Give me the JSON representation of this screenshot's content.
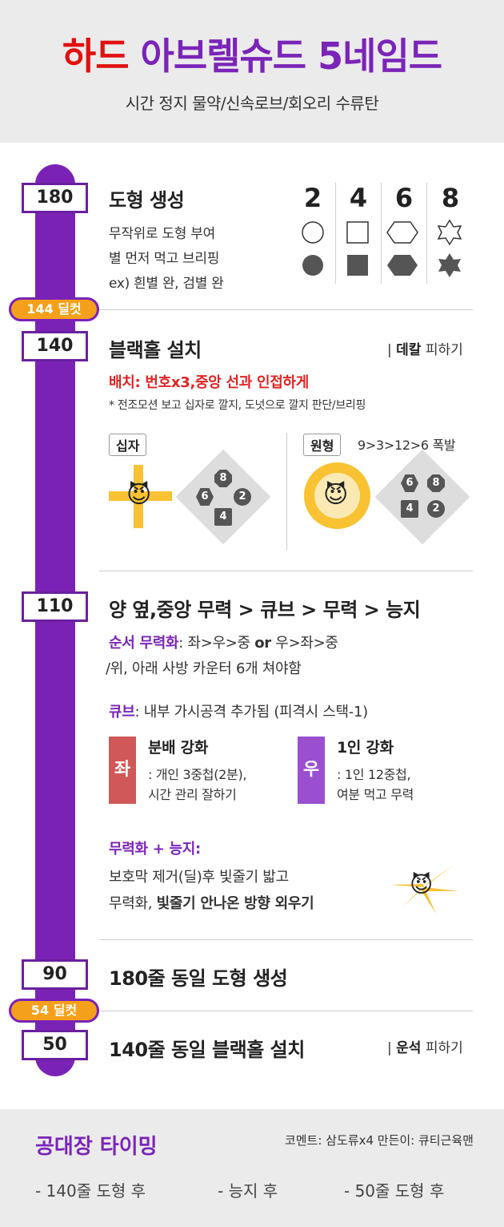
{
  "header": {
    "title_part1": "하드",
    "title_part2": "아브렐슈드 5네임드",
    "subtitle": "시간 정지 물약/신속로브/회오리 수류탄"
  },
  "timeline": {
    "hp_markers": [
      "180",
      "140",
      "110",
      "90",
      "50"
    ],
    "deal_pills": [
      "144 딜컷",
      "54 딜컷"
    ]
  },
  "sec180": {
    "title": "도형 생성",
    "lines": [
      "무작위로 도형 부여",
      "별 먼저 먹고 브리핑",
      "ex) 흰별 완, 검별 완"
    ],
    "shape_numbers": [
      "2",
      "4",
      "6",
      "8"
    ]
  },
  "sec140": {
    "title": "블랙홀 설치",
    "note_bold": "데칼",
    "note_rest": "피하기",
    "red_line": "배치: 번호x3,중앙 선과 인접하게",
    "small_line": "* 전조모션 보고 십자로 깔지, 도넛으로 깔지 판단/브리핑",
    "cross_tag": "십자",
    "circle_tag": "원형",
    "circle_order": "9>3>12>6  폭발",
    "cross_badges": [
      "8",
      "6",
      "2",
      "4"
    ],
    "circle_badges": [
      "6",
      "8",
      "4",
      "2"
    ],
    "devil": "😈"
  },
  "sec110": {
    "title": "양 옆,중앙 무력 > 큐브 > 무력 > 능지",
    "order_label": "순서 무력화",
    "order_text": ": 좌>우>중 ",
    "order_or": "or",
    "order_text2": " 우>좌>중",
    "order_line2": "/위, 아래 사방 카운터 6개 쳐야함",
    "cube_label": "큐브",
    "cube_text": ": 내부 가시공격 추가됨 (피격시 스택-1)",
    "left_box": "좌",
    "left_title": "분배 강화",
    "left_lines": [
      ": 개인 3중첩(2분),",
      "시간 관리 잘하기"
    ],
    "right_box": "우",
    "right_title": "1인 강화",
    "right_lines": [
      ": 1인 12중첩,",
      "여분 먹고 무력"
    ],
    "stagger_label": "무력화 + 능지:",
    "stagger_line1": "보호막 제거(딜)후 빛줄기 밟고",
    "stagger_line2a": "무력화,  ",
    "stagger_line2b": "빛줄기 안나온 방향 외우기",
    "left_color": "#d05858",
    "right_color": "#9a4fd0"
  },
  "sec90": {
    "title": "180줄 동일 도형 생성"
  },
  "sec50": {
    "title": "140줄 동일 블랙홀 설치",
    "note_bold": "운석",
    "note_rest": "피하기"
  },
  "footer": {
    "title": "공대장 타이밍",
    "comment": "코멘트: 삼도류x4   만든이: 큐티근육맨",
    "items": [
      "- 140줄 도형 후",
      "- 능지 후",
      "- 50줄 도형 후"
    ]
  },
  "colors": {
    "timeline": "#7b22b6",
    "deal_pill": "#f5a01a",
    "title_red": "#e01010",
    "title_purple": "#7a24b8"
  }
}
